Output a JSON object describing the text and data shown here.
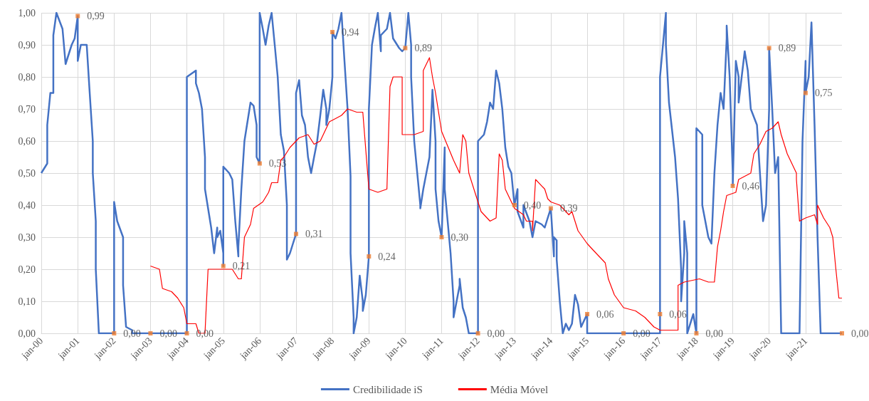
{
  "chart_data": {
    "type": "line",
    "xlim": [
      "2000-01",
      "2022-01"
    ],
    "xticks": [
      {
        "value": "2000-01",
        "label": "jan-00"
      },
      {
        "value": "2001-01",
        "label": "jan-01"
      },
      {
        "value": "2002-01",
        "label": "jan-02"
      },
      {
        "value": "2003-01",
        "label": "jan-03"
      },
      {
        "value": "2004-01",
        "label": "jan-04"
      },
      {
        "value": "2005-01",
        "label": "jan-05"
      },
      {
        "value": "2006-01",
        "label": "jan-06"
      },
      {
        "value": "2007-01",
        "label": "jan-07"
      },
      {
        "value": "2008-01",
        "label": "jan-08"
      },
      {
        "value": "2009-01",
        "label": "jan-09"
      },
      {
        "value": "2010-01",
        "label": "jan-10"
      },
      {
        "value": "2011-01",
        "label": "jan-11"
      },
      {
        "value": "2012-01",
        "label": "jan-12"
      },
      {
        "value": "2013-01",
        "label": "jan-13"
      },
      {
        "value": "2014-01",
        "label": "jan-14"
      },
      {
        "value": "2015-01",
        "label": "jan-15"
      },
      {
        "value": "2016-01",
        "label": "jan-16"
      },
      {
        "value": "2017-01",
        "label": "jan-17"
      },
      {
        "value": "2018-01",
        "label": "jan-18"
      },
      {
        "value": "2019-01",
        "label": "jan-19"
      },
      {
        "value": "2020-01",
        "label": "jan-20"
      },
      {
        "value": "2021-01",
        "label": "jan-21"
      }
    ],
    "ylim": [
      0,
      1
    ],
    "yticks": [
      {
        "value": 0,
        "label": "0,00"
      },
      {
        "value": 0.1,
        "label": "0,10"
      },
      {
        "value": 0.2,
        "label": "0,20"
      },
      {
        "value": 0.3,
        "label": "0,30"
      },
      {
        "value": 0.4,
        "label": "0,40"
      },
      {
        "value": 0.5,
        "label": "0,50"
      },
      {
        "value": 0.6,
        "label": "0,60"
      },
      {
        "value": 0.7,
        "label": "0,70"
      },
      {
        "value": 0.8,
        "label": "0,80"
      },
      {
        "value": 0.9,
        "label": "0,90"
      },
      {
        "value": 1,
        "label": "1,00"
      }
    ],
    "grid": true,
    "legend": "bottom",
    "series": [
      {
        "name": "Credibilidade iS",
        "color": "#4472c4",
        "marker": "none",
        "line_style": "solid",
        "x": [
          "2000-01",
          "2000-03",
          "2000-03",
          "2000-04",
          "2000-05",
          "2000-05",
          "2000-06",
          "2000-08",
          "2000-09",
          "2000-11",
          "2000-12",
          "2001-01",
          "2001-01",
          "2001-02",
          "2001-04",
          "2001-05",
          "2001-06",
          "2001-06",
          "2001-07",
          "2001-07",
          "2001-08",
          "2002-01",
          "2002-01",
          "2002-02",
          "2002-04",
          "2002-04",
          "2002-05",
          "2002-07",
          "2002-07",
          "2004-01",
          "2004-01",
          "2004-04",
          "2004-04",
          "2004-05",
          "2004-06",
          "2004-07",
          "2004-07",
          "2004-09",
          "2004-10",
          "2004-11",
          "2004-11",
          "2004-12",
          "2005-01",
          "2005-01",
          "2005-01",
          "2005-03",
          "2005-04",
          "2005-05",
          "2005-06",
          "2005-06",
          "2005-07",
          "2005-08",
          "2005-10",
          "2005-11",
          "2005-12",
          "2005-12",
          "2006-01",
          "2006-01",
          "2006-02",
          "2006-03",
          "2006-04",
          "2006-05",
          "2006-06",
          "2006-07",
          "2006-08",
          "2006-09",
          "2006-10",
          "2006-10",
          "2006-11",
          "2006-12",
          "2007-01",
          "2007-01",
          "2007-02",
          "2007-03",
          "2007-04",
          "2007-05",
          "2007-06",
          "2007-07",
          "2007-08",
          "2007-09",
          "2007-10",
          "2007-11",
          "2007-11",
          "2007-12",
          "2008-01",
          "2008-01",
          "2008-02",
          "2008-03",
          "2008-04",
          "2008-05",
          "2008-06",
          "2008-07",
          "2008-07",
          "2008-08",
          "2008-08",
          "2008-09",
          "2008-10",
          "2008-11",
          "2008-11",
          "2008-12",
          "2009-01",
          "2009-01",
          "2009-02",
          "2009-03",
          "2009-04",
          "2009-05",
          "2009-05",
          "2009-07",
          "2009-08",
          "2009-09",
          "2009-11",
          "2009-12",
          "2010-01",
          "2010-02",
          "2010-03",
          "2010-03",
          "2010-04",
          "2010-06",
          "2010-06",
          "2010-07",
          "2010-09",
          "2010-10",
          "2010-11",
          "2010-11",
          "2010-12",
          "2011-01",
          "2011-02",
          "2011-02",
          "2011-04",
          "2011-05",
          "2011-05",
          "2011-07",
          "2011-07",
          "2011-08",
          "2011-09",
          "2011-10",
          "2012-01",
          "2012-01",
          "2012-03",
          "2012-04",
          "2012-05",
          "2012-06",
          "2012-07",
          "2012-08",
          "2012-09",
          "2012-10",
          "2012-11",
          "2012-12",
          "2013-01",
          "2013-02",
          "2013-02",
          "2013-04",
          "2013-04",
          "2013-06",
          "2013-07",
          "2013-08",
          "2013-10",
          "2013-11",
          "2013-12",
          "2014-01",
          "2014-02",
          "2014-02",
          "2014-03",
          "2014-03",
          "2014-04",
          "2014-05",
          "2014-06",
          "2014-07",
          "2014-08",
          "2014-09",
          "2014-10",
          "2014-11",
          "2014-12",
          "2015-01",
          "2015-01",
          "2017-01",
          "2017-01",
          "2017-01",
          "2017-03",
          "2017-03",
          "2017-04",
          "2017-06",
          "2017-07",
          "2017-08",
          "2017-08",
          "2017-09",
          "2017-09",
          "2017-10",
          "2017-10",
          "2017-12",
          "2018-01",
          "2018-01",
          "2018-01",
          "2018-03",
          "2018-03",
          "2018-05",
          "2018-06",
          "2018-07",
          "2018-08",
          "2018-09",
          "2018-10",
          "2018-11",
          "2018-11",
          "2018-12",
          "2019-01",
          "2019-01",
          "2019-02",
          "2019-03",
          "2019-03",
          "2019-05",
          "2019-06",
          "2019-07",
          "2019-09",
          "2019-10",
          "2019-11",
          "2019-12",
          "2020-01",
          "2020-01",
          "2020-02",
          "2020-03",
          "2020-04",
          "2020-05",
          "2020-11",
          "2020-12",
          "2021-01",
          "2021-01",
          "2021-02",
          "2021-03",
          "2021-04",
          "2021-05",
          "2021-06",
          "2022-01"
        ],
        "values": [
          0.5,
          0.53,
          0.65,
          0.75,
          0.75,
          0.93,
          1.0,
          0.95,
          0.84,
          0.9,
          0.92,
          0.99,
          0.85,
          0.9,
          0.9,
          0.75,
          0.6,
          0.5,
          0.35,
          0.2,
          0.0,
          0.0,
          0.41,
          0.35,
          0.3,
          0.15,
          0.02,
          0.01,
          0.0,
          0.0,
          0.8,
          0.82,
          0.78,
          0.75,
          0.7,
          0.55,
          0.45,
          0.33,
          0.25,
          0.33,
          0.3,
          0.32,
          0.25,
          0.21,
          0.52,
          0.5,
          0.48,
          0.35,
          0.24,
          0.27,
          0.45,
          0.6,
          0.72,
          0.71,
          0.65,
          0.55,
          0.53,
          1.0,
          0.95,
          0.9,
          0.96,
          1.0,
          0.9,
          0.8,
          0.62,
          0.57,
          0.4,
          0.23,
          0.25,
          0.28,
          0.31,
          0.75,
          0.79,
          0.68,
          0.65,
          0.55,
          0.5,
          0.55,
          0.6,
          0.68,
          0.76,
          0.7,
          0.65,
          0.7,
          0.8,
          0.94,
          0.92,
          0.95,
          1.0,
          0.85,
          0.7,
          0.49,
          0.25,
          0.05,
          0.0,
          0.05,
          0.18,
          0.1,
          0.07,
          0.12,
          0.24,
          0.7,
          0.9,
          0.95,
          1.0,
          0.88,
          0.93,
          0.95,
          1.0,
          0.92,
          0.89,
          0.88,
          0.89,
          1.0,
          0.9,
          0.8,
          0.6,
          0.4,
          0.39,
          0.45,
          0.55,
          0.76,
          0.6,
          0.45,
          0.35,
          0.3,
          0.58,
          0.45,
          0.25,
          0.1,
          0.05,
          0.15,
          0.17,
          0.08,
          0.05,
          0.0,
          0.0,
          0.6,
          0.62,
          0.66,
          0.72,
          0.7,
          0.82,
          0.78,
          0.7,
          0.58,
          0.52,
          0.5,
          0.4,
          0.45,
          0.38,
          0.33,
          0.4,
          0.35,
          0.3,
          0.35,
          0.34,
          0.33,
          0.36,
          0.39,
          0.24,
          0.3,
          0.29,
          0.23,
          0.1,
          0.0,
          0.03,
          0.01,
          0.03,
          0.12,
          0.09,
          0.02,
          0.04,
          0.06,
          0.0,
          0.0,
          0.06,
          0.8,
          1.0,
          0.9,
          0.72,
          0.55,
          0.42,
          0.2,
          0.1,
          0.25,
          0.35,
          0.25,
          0.0,
          0.06,
          0.0,
          0.0,
          0.64,
          0.62,
          0.4,
          0.3,
          0.28,
          0.5,
          0.65,
          0.75,
          0.7,
          0.92,
          0.96,
          0.8,
          0.5,
          0.46,
          0.85,
          0.8,
          0.72,
          0.88,
          0.82,
          0.7,
          0.65,
          0.5,
          0.35,
          0.4,
          0.7,
          0.89,
          0.7,
          0.5,
          0.55,
          0.0,
          0.0,
          0.6,
          0.85,
          0.75,
          0.8,
          0.97,
          0.65,
          0.3,
          0.0,
          0.0
        ]
      },
      {
        "name": "Média Móvel",
        "color": "#ff0000",
        "marker": "none",
        "line_style": "solid",
        "x": [
          "2003-01",
          "2003-04",
          "2003-05",
          "2003-08",
          "2003-10",
          "2003-12",
          "2004-01",
          "2004-04",
          "2004-05",
          "2004-07",
          "2004-08",
          "2005-04",
          "2005-06",
          "2005-07",
          "2005-08",
          "2005-10",
          "2005-11",
          "2006-02",
          "2006-04",
          "2006-05",
          "2006-07",
          "2006-08",
          "2006-09",
          "2006-11",
          "2007-02",
          "2007-05",
          "2007-07",
          "2007-09",
          "2007-12",
          "2008-02",
          "2008-04",
          "2008-06",
          "2008-09",
          "2008-11",
          "2009-01",
          "2009-04",
          "2009-07",
          "2009-08",
          "2009-09",
          "2009-12",
          "2009-12",
          "2010-04",
          "2010-07",
          "2010-07",
          "2010-09",
          "2010-10",
          "2010-11",
          "2011-01",
          "2011-05",
          "2011-07",
          "2011-08",
          "2011-09",
          "2011-10",
          "2012-01",
          "2012-02",
          "2012-05",
          "2012-07",
          "2012-08",
          "2012-09",
          "2012-10",
          "2013-01",
          "2013-04",
          "2013-05",
          "2013-07",
          "2013-07",
          "2013-08",
          "2013-11",
          "2013-12",
          "2014-01",
          "2014-04",
          "2014-07",
          "2014-08",
          "2014-10",
          "2015-01",
          "2015-03",
          "2015-07",
          "2015-08",
          "2015-10",
          "2016-01",
          "2016-05",
          "2016-08",
          "2016-11",
          "2017-01",
          "2017-03",
          "2017-07",
          "2017-07",
          "2017-09",
          "2018-02",
          "2018-05",
          "2018-07",
          "2018-08",
          "2018-09",
          "2018-10",
          "2018-11",
          "2019-02",
          "2019-03",
          "2019-05",
          "2019-07",
          "2019-08",
          "2019-10",
          "2019-12",
          "2020-02",
          "2020-04",
          "2020-05",
          "2020-07",
          "2020-10",
          "2020-10",
          "2020-11",
          "2021-01",
          "2021-04",
          "2021-05",
          "2021-05",
          "2021-07",
          "2021-09",
          "2021-10",
          "2021-11",
          "2021-12",
          "2022-01"
        ],
        "values": [
          0.21,
          0.2,
          0.14,
          0.13,
          0.11,
          0.08,
          0.03,
          0.03,
          0.0,
          0.0,
          0.2,
          0.2,
          0.17,
          0.17,
          0.3,
          0.34,
          0.39,
          0.41,
          0.44,
          0.47,
          0.47,
          0.54,
          0.55,
          0.58,
          0.61,
          0.62,
          0.59,
          0.6,
          0.66,
          0.67,
          0.68,
          0.7,
          0.69,
          0.69,
          0.45,
          0.44,
          0.45,
          0.77,
          0.8,
          0.8,
          0.62,
          0.62,
          0.63,
          0.82,
          0.86,
          0.8,
          0.75,
          0.63,
          0.54,
          0.5,
          0.62,
          0.6,
          0.5,
          0.41,
          0.38,
          0.35,
          0.36,
          0.56,
          0.54,
          0.45,
          0.39,
          0.37,
          0.35,
          0.35,
          0.32,
          0.48,
          0.45,
          0.42,
          0.41,
          0.4,
          0.37,
          0.38,
          0.32,
          0.28,
          0.26,
          0.22,
          0.17,
          0.12,
          0.08,
          0.07,
          0.05,
          0.02,
          0.01,
          0.01,
          0.01,
          0.15,
          0.16,
          0.17,
          0.16,
          0.16,
          0.27,
          0.32,
          0.38,
          0.43,
          0.44,
          0.48,
          0.49,
          0.5,
          0.56,
          0.59,
          0.63,
          0.64,
          0.66,
          0.62,
          0.56,
          0.5,
          0.48,
          0.35,
          0.36,
          0.37,
          0.34,
          0.4,
          0.36,
          0.33,
          0.3,
          0.2,
          0.11,
          0.11
        ]
      },
      {
        "type": "scatter",
        "color": "#ed7d31",
        "marker": "square",
        "x": [
          "2001-01",
          "2002-01",
          "2003-01",
          "2004-01",
          "2005-01",
          "2006-01",
          "2007-01",
          "2008-01",
          "2009-01",
          "2010-01",
          "2011-01",
          "2012-01",
          "2013-01",
          "2014-01",
          "2015-01",
          "2016-01",
          "2017-01",
          "2018-01",
          "2019-01",
          "2020-01",
          "2021-01",
          "2022-01"
        ],
        "values": [
          0.99,
          0.0,
          0.0,
          0.0,
          0.21,
          0.53,
          0.31,
          0.94,
          0.24,
          0.89,
          0.3,
          0.0,
          0.4,
          0.39,
          0.06,
          0.0,
          0.06,
          0.0,
          0.46,
          0.89,
          0.75,
          0.0
        ],
        "value_labels": [
          "0,99",
          "0,00",
          "0,00",
          "0,00",
          "0,21",
          "0,53",
          "0,31",
          "0,94",
          "0,24",
          "0,89",
          "0,30",
          "0,00",
          "0,40",
          "0,39",
          "0,06",
          "0,00",
          "0,06",
          "0,00",
          "0,46",
          "0,89",
          "0,75",
          "0,00"
        ]
      }
    ]
  }
}
